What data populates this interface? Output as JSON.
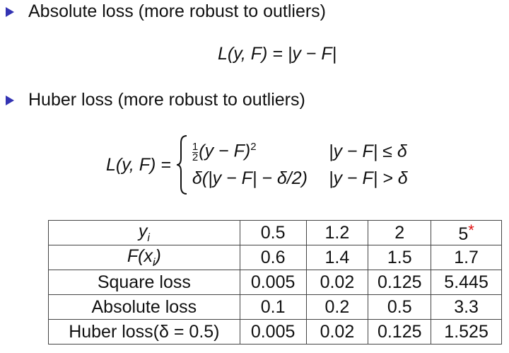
{
  "bullets": [
    {
      "text": "Absolute loss (more robust to outliers)"
    },
    {
      "text": "Huber loss (more robust to outliers)"
    }
  ],
  "absolute_formula": {
    "lhs": "L(y, F) = ",
    "rhs": "|y − F|"
  },
  "huber_formula": {
    "lhs": "L(y, F) = ",
    "case1": {
      "frac_num": "1",
      "frac_den": "2",
      "expr": "(y − F)",
      "exp": "2",
      "cond": "|y − F| ≤ δ"
    },
    "case2": {
      "expr": "δ(|y − F| − δ/2)",
      "cond": "|y − F| > δ"
    }
  },
  "table": {
    "rows": [
      {
        "label": "y",
        "label_sub": "i",
        "cells": [
          "0.5",
          "1.2",
          "2",
          "5"
        ],
        "outlier_mark": "*"
      },
      {
        "label": "F(x",
        "label_sub": "i",
        "label_end": ")",
        "cells": [
          "0.6",
          "1.4",
          "1.5",
          "1.7"
        ]
      },
      {
        "label": "Square loss",
        "cells": [
          "0.005",
          "0.02",
          "0.125",
          "5.445"
        ]
      },
      {
        "label": "Absolute loss",
        "cells": [
          "0.1",
          "0.2",
          "0.5",
          "3.3"
        ]
      },
      {
        "label": "Huber loss(δ = 0.5)",
        "cells": [
          "0.005",
          "0.02",
          "0.125",
          "1.525"
        ]
      }
    ],
    "outlier_color": "#e01010"
  }
}
